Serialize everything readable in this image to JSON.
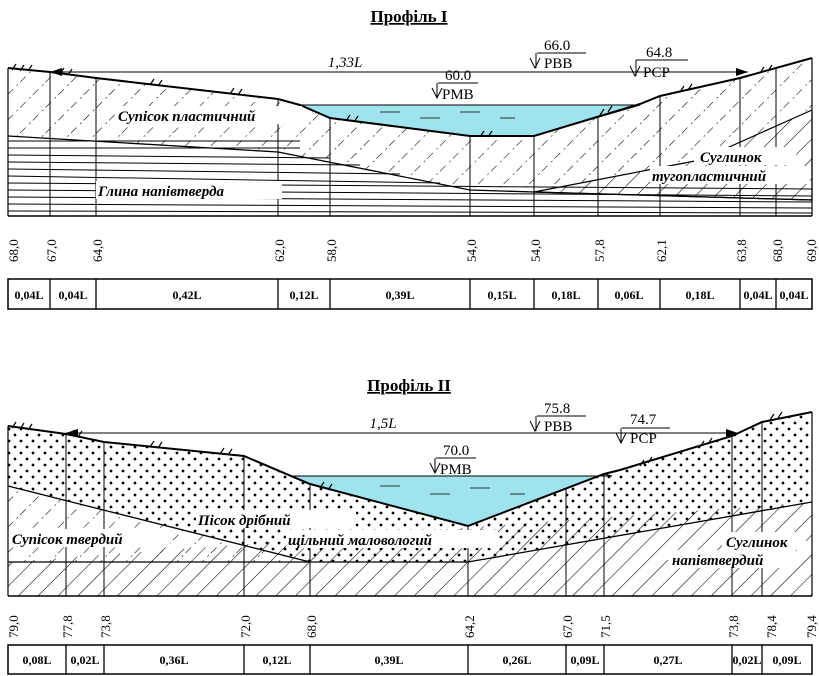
{
  "profiles": [
    {
      "title": "Профіль І",
      "span_label": "1,33L",
      "levels": [
        {
          "value": "60.0",
          "name": "РМВ"
        },
        {
          "value": "66.0",
          "name": "РВВ"
        },
        {
          "value": "64.8",
          "name": "РСР"
        }
      ],
      "soils": [
        {
          "name": "Супісок пластичний"
        },
        {
          "name": "Глина напівтверда"
        },
        {
          "name": "Суглинок"
        },
        {
          "name": "тугопластичний"
        }
      ],
      "elevations": [
        "68,0",
        "67,0",
        "64,0",
        "62,0",
        "58,0",
        "54,0",
        "54,0",
        "57,8",
        "62,1",
        "63,8",
        "68,0",
        "69,0"
      ],
      "segments": [
        "0,04L",
        "0,04L",
        "0,42L",
        "0,12L",
        "0,39L",
        "0,15L",
        "0,18L",
        "0,06L",
        "0,18L",
        "0,04L",
        "0,04L"
      ]
    },
    {
      "title": "Профіль ІІ",
      "span_label": "1,5L",
      "levels": [
        {
          "value": "70.0",
          "name": "РМВ"
        },
        {
          "value": "75.8",
          "name": "РВВ"
        },
        {
          "value": "74.7",
          "name": "РСР"
        }
      ],
      "soils": [
        {
          "name": "Супісок твердий"
        },
        {
          "name": "Пісок дрібний"
        },
        {
          "name": "щільний маловологий"
        },
        {
          "name": "Суглинок"
        },
        {
          "name": "напівтвердий"
        }
      ],
      "elevations": [
        "79,0",
        "77,8",
        "73,8",
        "72,0",
        "68,0",
        "64,2",
        "67,0",
        "71,5",
        "73,8",
        "78,4",
        "79,4"
      ],
      "segments": [
        "0,08L",
        "0,02L",
        "0,36L",
        "0,12L",
        "0,39L",
        "0,26L",
        "0,09L",
        "0,27L",
        "0,02L",
        "0,09L"
      ]
    }
  ],
  "colors": {
    "water": "#9fe3ec",
    "ink": "#000000"
  }
}
